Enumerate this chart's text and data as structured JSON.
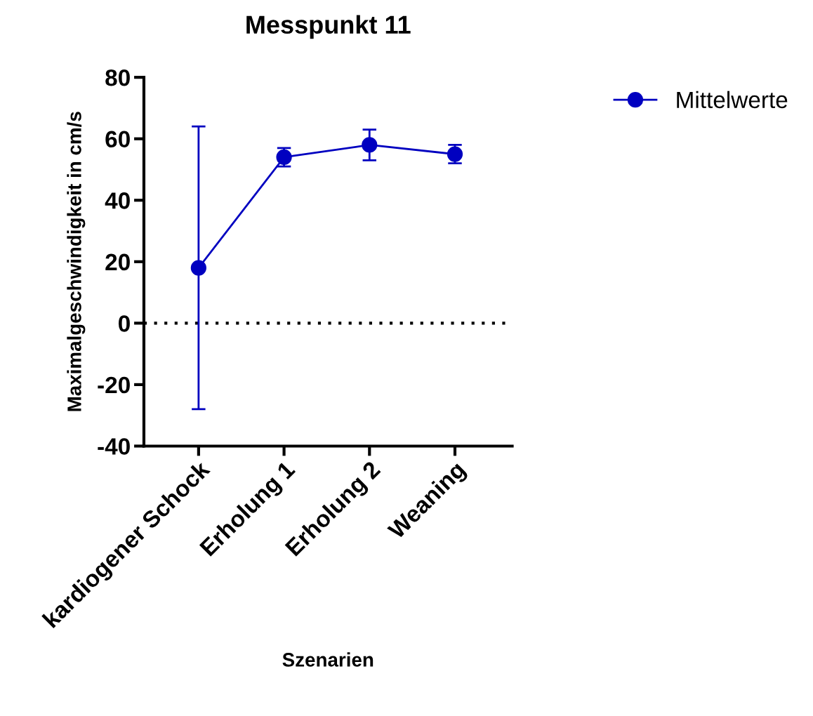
{
  "chart_data": {
    "type": "line",
    "title": "Messpunkt 11",
    "xlabel": "Szenarien",
    "ylabel": "Maximalgeschwindigkeit in cm/s",
    "categories": [
      "kardiogener Schock",
      "Erholung 1",
      "Erholung 2",
      "Weaning"
    ],
    "series": [
      {
        "name": "Mittelwerte",
        "color": "#0000c0",
        "values": [
          18,
          54,
          58,
          55
        ],
        "errors": [
          46,
          3,
          5,
          3
        ]
      }
    ],
    "ylim": [
      -40,
      80
    ],
    "yticks": [
      -40,
      -20,
      0,
      20,
      40,
      60,
      80
    ],
    "ref_lines": [
      {
        "axis": "y",
        "value": 0,
        "color": "#000000",
        "line_style": "dotted"
      }
    ],
    "marker": "circle",
    "line_style": "solid",
    "legend": "top right",
    "grid": false
  }
}
